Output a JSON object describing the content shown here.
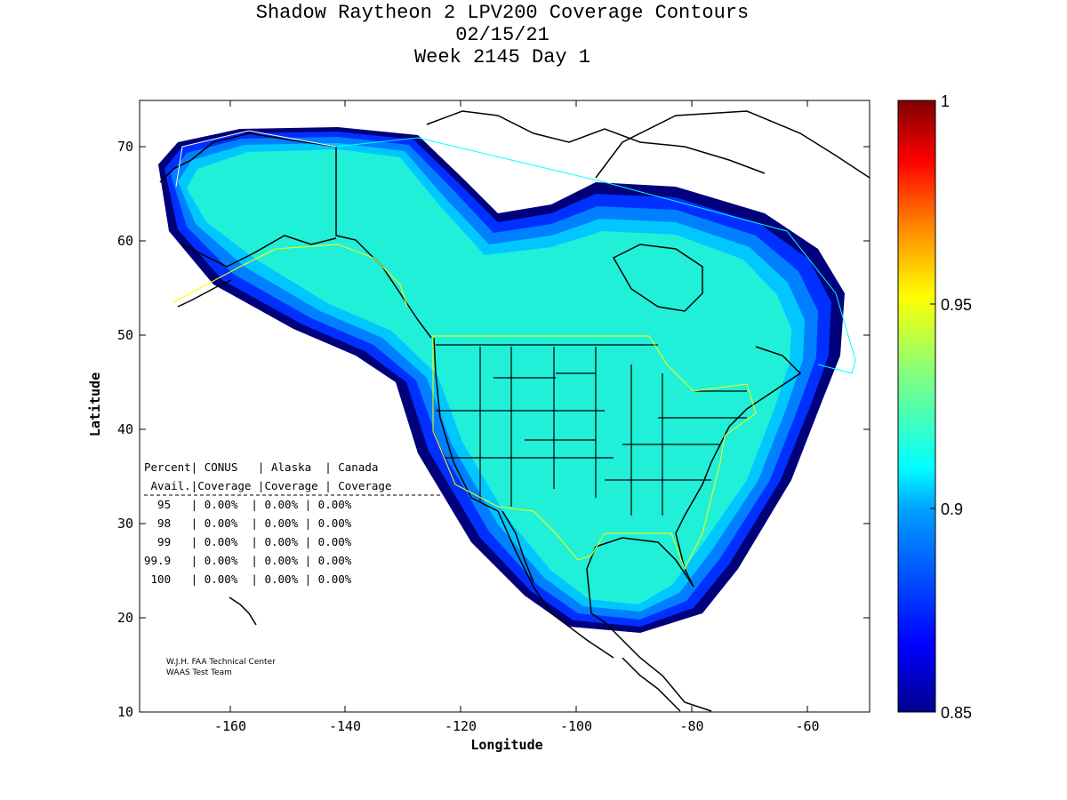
{
  "title": {
    "line1": "Shadow Raytheon 2 LPV200 Coverage Contours",
    "line2": "02/15/21",
    "line3": "Week 2145 Day 1"
  },
  "axes": {
    "xlabel": "Longitude",
    "ylabel": "Latitude",
    "xticks": [
      "-160",
      "-140",
      "-120",
      "-100",
      "-80",
      "-60"
    ],
    "yticks": [
      "10",
      "20",
      "30",
      "40",
      "50",
      "60",
      "70"
    ]
  },
  "colorbar": {
    "labels": [
      "1",
      "0.95",
      "0.9",
      "0.85"
    ],
    "colors": [
      "#00008f",
      "#0000ff",
      "#0080ff",
      "#00ffff",
      "#80ff80",
      "#ffff00",
      "#ff8000",
      "#ff0000",
      "#800000"
    ]
  },
  "stats_table": {
    "header1": "Percent| CONUS   | Alaska  | Canada",
    "header2": " Avail.|Coverage |Coverage | Coverage",
    "rows": [
      "  95   | 0.00%  | 0.00% | 0.00%",
      "  98   | 0.00%  | 0.00% | 0.00%",
      "  99   | 0.00%  | 0.00% | 0.00%",
      "99.9   | 0.00%  | 0.00% | 0.00%",
      " 100   | 0.00%  | 0.00% | 0.00%"
    ]
  },
  "credits": {
    "line1": "W.J.H. FAA Technical Center",
    "line2": "WAAS Test Team"
  },
  "chart_data": {
    "type": "heatmap",
    "title": "Shadow Raytheon 2 LPV200 Coverage Contours",
    "subtitle": "02/15/21 Week 2145 Day 1",
    "xlabel": "Longitude",
    "ylabel": "Latitude",
    "xlim": [
      -175,
      -50
    ],
    "ylim": [
      10,
      75
    ],
    "colorbar_range": [
      0.85,
      1
    ],
    "colorbar_ticks": [
      0.85,
      0.9,
      0.95,
      1
    ],
    "coverage_region": "North America (Alaska, Canada, CONUS, Mexico)",
    "max_availability_value": 0.9,
    "grid": false,
    "colors": {
      "core": "#20f0d8",
      "edge_dark": "#00007a",
      "edge_blue": "#0040ff",
      "mid": "#00b0ff"
    }
  }
}
